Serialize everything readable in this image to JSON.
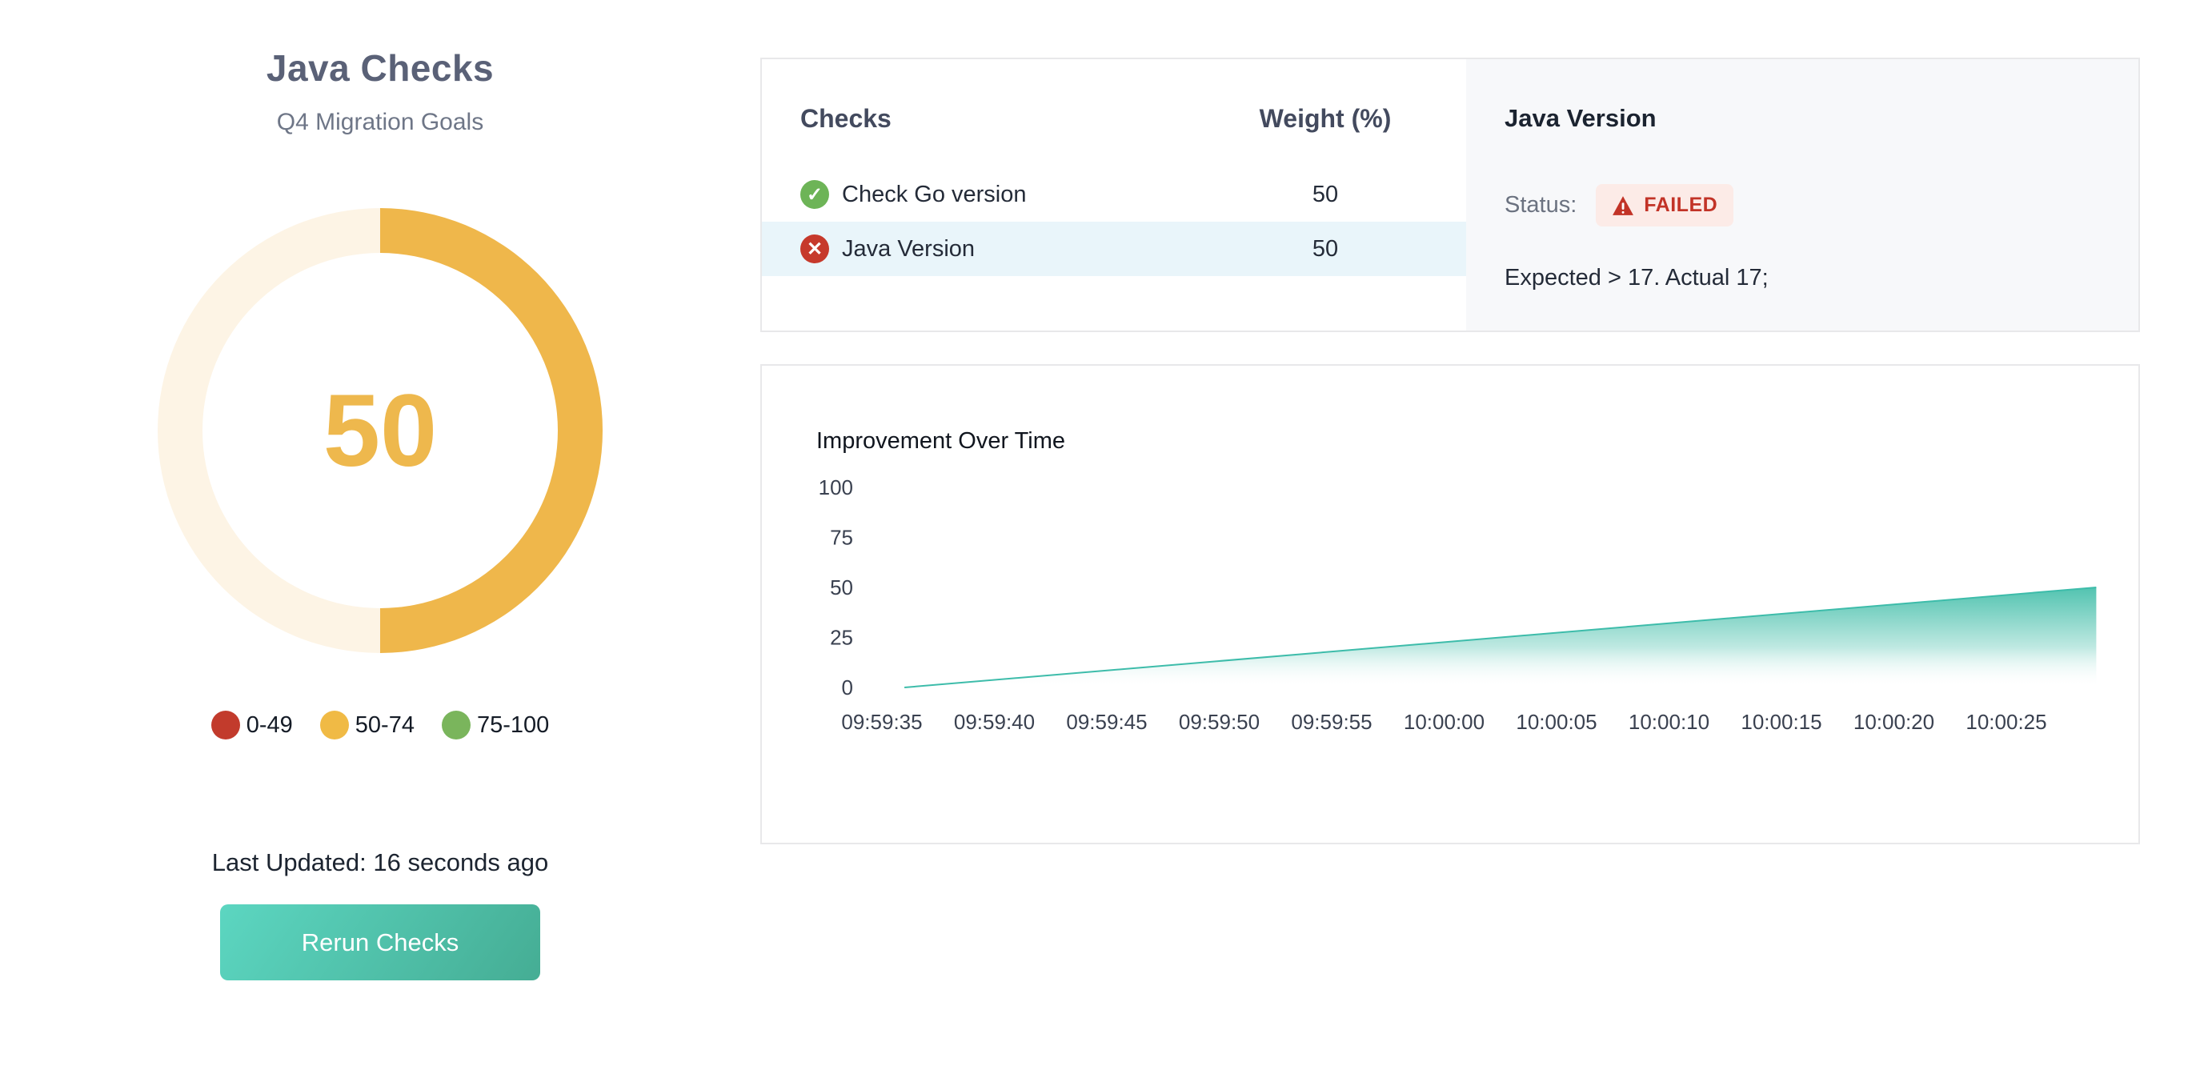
{
  "page": {
    "title": "Java Checks",
    "subtitle": "Q4 Migration Goals"
  },
  "gauge": {
    "value": "50",
    "max": 100,
    "percent": 50,
    "fill_color": "#efb74b",
    "track_color": "#fdf4e5",
    "value_color": "#eeb84d"
  },
  "legend": {
    "items": [
      {
        "label": "0-49",
        "color": "#c23b2c"
      },
      {
        "label": "50-74",
        "color": "#f0ba45"
      },
      {
        "label": "75-100",
        "color": "#7ab55c"
      }
    ]
  },
  "footer": {
    "last_updated": "Last Updated: 16 seconds ago",
    "rerun_button_label": "Rerun Checks"
  },
  "checks_panel": {
    "header": {
      "checks": "Checks",
      "weight": "Weight (%)"
    },
    "rows": [
      {
        "name": "Check Go version",
        "weight": "50",
        "status": "passed",
        "icon_glyph": "✓",
        "icon_color": "#6db457",
        "highlighted": false
      },
      {
        "name": "Java Version",
        "weight": "50",
        "status": "failed",
        "icon_glyph": "✕",
        "icon_color": "#c6392b",
        "highlighted": true
      }
    ]
  },
  "detail_panel": {
    "title": "Java Version",
    "status_label": "Status:",
    "badge_label": "FAILED",
    "badge_bg": "#fcebe7",
    "badge_color": "#c23327",
    "message": "Expected > 17. Actual 17;"
  },
  "chart_data": {
    "type": "area",
    "title": "Improvement Over Time",
    "xlabel": "",
    "ylabel": "",
    "ylim": [
      0,
      100
    ],
    "y_ticks": [
      100,
      75,
      50,
      25,
      0
    ],
    "x_ticks": [
      "09:59:35",
      "09:59:40",
      "09:59:45",
      "09:59:50",
      "09:59:55",
      "10:00:00",
      "10:00:05",
      "10:00:10",
      "10:00:15",
      "10:00:20",
      "10:00:25"
    ],
    "grid": false,
    "legend_position": "none",
    "series": [
      {
        "name": "Improvement",
        "interpolation": "linear",
        "points": [
          {
            "t": "09:59:36",
            "v": 0
          },
          {
            "t": "10:00:29",
            "v": 50
          }
        ]
      }
    ],
    "colors": {
      "area_top": "#49c0ac",
      "area_bottom": "#ffffff",
      "line": "#3dbcaa"
    }
  }
}
